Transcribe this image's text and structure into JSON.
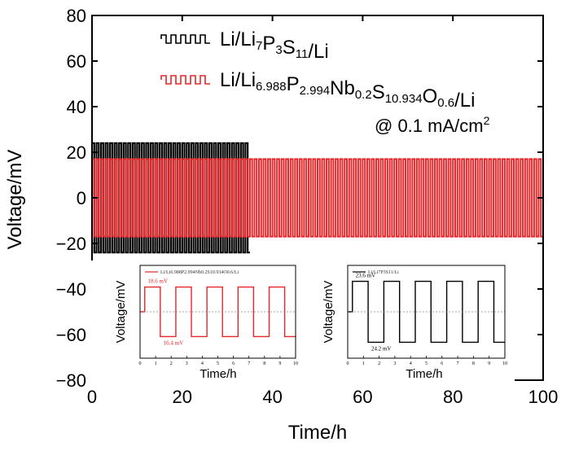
{
  "chart_data": {
    "type": "line",
    "title": "",
    "xlabel": "Time/h",
    "ylabel": "Voltage/mV",
    "xlim": [
      0,
      100
    ],
    "ylim": [
      -80,
      80
    ],
    "xticks": [
      0,
      20,
      40,
      60,
      80,
      100
    ],
    "yticks": [
      -80,
      -60,
      -40,
      -20,
      0,
      20,
      40,
      60,
      80
    ],
    "annotation": {
      "prefix": "@ 0.1 mA/cm",
      "sup": "2"
    },
    "series": [
      {
        "name": "Li/Li7P3S11/Li",
        "legend_parts": [
          [
            "Li/Li",
            ""
          ],
          [
            "7",
            "sub"
          ],
          [
            "P",
            ""
          ],
          [
            "3",
            "sub"
          ],
          [
            "S",
            ""
          ],
          [
            "11",
            "sub"
          ],
          [
            "/Li",
            ""
          ]
        ],
        "color": "#000000",
        "period_h": 1,
        "segments": [
          {
            "t_start": 0,
            "t_end": 35,
            "amplitude_mV": 24
          }
        ]
      },
      {
        "name": "Li/Li6.988P2.994Nb0.2S10.934O0.6/Li",
        "legend_parts": [
          [
            "Li/Li",
            ""
          ],
          [
            "6.988",
            "sub"
          ],
          [
            "P",
            ""
          ],
          [
            "2.994",
            "sub"
          ],
          [
            "Nb",
            ""
          ],
          [
            "0.2",
            "sub"
          ],
          [
            "S",
            ""
          ],
          [
            "10.934",
            "sub"
          ],
          [
            "O",
            ""
          ],
          [
            "0.6",
            "sub"
          ],
          [
            "/Li",
            ""
          ]
        ],
        "color": "#e8262a",
        "period_h": 1,
        "segments": [
          {
            "t_start": 0,
            "t_end": 100,
            "amplitude_mV": 17
          }
        ]
      }
    ],
    "insets": [
      {
        "name": "inset-red",
        "legend": "Li/Li6.988P2.994Nb0.2S10.934O0.6/Li",
        "color": "#e8262a",
        "xlabel": "Time/h",
        "ylabel": "Voltage/mV",
        "xlim": [
          0,
          10
        ],
        "xticks": [
          0,
          1,
          2,
          3,
          4,
          5,
          6,
          7,
          8,
          9,
          10
        ],
        "ylim": [
          -30,
          30
        ],
        "amplitude_mV": 16,
        "notes": [
          "18.6 mV",
          "16.4 mV"
        ]
      },
      {
        "name": "inset-black",
        "legend": "Li/Li7P3S11/Li",
        "color": "#000000",
        "xlabel": "Time/h",
        "ylabel": "Voltage/mV",
        "xlim": [
          0,
          10
        ],
        "xticks": [
          0,
          1,
          2,
          3,
          4,
          5,
          6,
          7,
          8,
          9,
          10
        ],
        "ylim": [
          -35,
          35
        ],
        "amplitude_mV": 23,
        "notes": [
          "23.6 mV",
          "24.2 mV"
        ]
      }
    ]
  }
}
